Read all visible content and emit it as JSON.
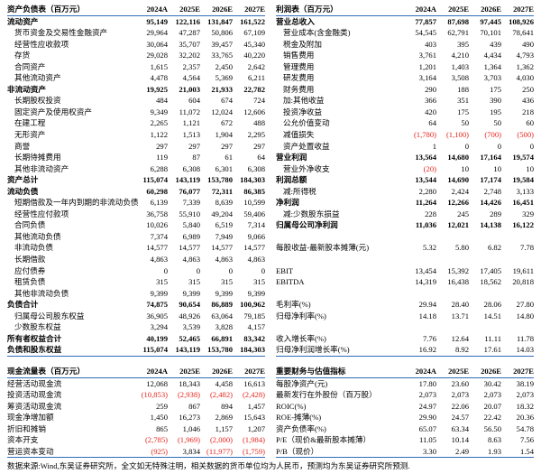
{
  "footer": {
    "text": "数据来源:Wind,东吴证券研究所，全文如无特殊注明，相关数据的货币单位均为人民币，预测均为东吴证券研究所预测."
  },
  "accent_colors": {
    "rule_blue": "#2f6db7",
    "negative_red": "#e4251c"
  },
  "tables": [
    {
      "id": "balance-sheet",
      "title": "资产负债表（百万元）",
      "columns": [
        "2024A",
        "2025E",
        "2026E",
        "2027E"
      ],
      "rows": [
        {
          "label": "流动资产",
          "bold": true,
          "values": [
            "95,149",
            "122,116",
            "131,847",
            "161,522"
          ]
        },
        {
          "label": "货币资金及交易性金融资产",
          "indent": 1,
          "values": [
            "29,964",
            "47,287",
            "50,806",
            "67,109"
          ]
        },
        {
          "label": "经营性应收款项",
          "indent": 1,
          "values": [
            "30,064",
            "35,707",
            "39,457",
            "45,340"
          ]
        },
        {
          "label": "存货",
          "indent": 1,
          "values": [
            "29,028",
            "32,202",
            "33,765",
            "40,220"
          ]
        },
        {
          "label": "合同资产",
          "indent": 1,
          "values": [
            "1,615",
            "2,357",
            "2,450",
            "2,642"
          ]
        },
        {
          "label": "其他流动资产",
          "indent": 1,
          "values": [
            "4,478",
            "4,564",
            "5,369",
            "6,211"
          ]
        },
        {
          "label": "非流动资产",
          "bold": true,
          "values": [
            "19,925",
            "21,003",
            "21,933",
            "22,782"
          ]
        },
        {
          "label": "长期股权投资",
          "indent": 1,
          "values": [
            "484",
            "604",
            "674",
            "724"
          ]
        },
        {
          "label": "固定资产及使用权资产",
          "indent": 1,
          "values": [
            "9,349",
            "11,072",
            "12,024",
            "12,606"
          ]
        },
        {
          "label": "在建工程",
          "indent": 1,
          "values": [
            "2,265",
            "1,121",
            "672",
            "488"
          ]
        },
        {
          "label": "无形资产",
          "indent": 1,
          "values": [
            "1,122",
            "1,513",
            "1,904",
            "2,295"
          ]
        },
        {
          "label": "商誉",
          "indent": 1,
          "values": [
            "297",
            "297",
            "297",
            "297"
          ]
        },
        {
          "label": "长期待摊费用",
          "indent": 1,
          "values": [
            "119",
            "87",
            "61",
            "64"
          ]
        },
        {
          "label": "其他非流动资产",
          "indent": 1,
          "values": [
            "6,288",
            "6,308",
            "6,301",
            "6,308"
          ]
        },
        {
          "label": "资产总计",
          "bold": true,
          "values": [
            "115,074",
            "143,119",
            "153,780",
            "184,303"
          ]
        },
        {
          "label": "流动负债",
          "bold": true,
          "values": [
            "60,298",
            "76,077",
            "72,311",
            "86,385"
          ]
        },
        {
          "label": "短期借款及一年内到期的非流动负债",
          "indent": 1,
          "values": [
            "6,139",
            "7,339",
            "8,639",
            "10,599"
          ]
        },
        {
          "label": "经营性应付款项",
          "indent": 1,
          "values": [
            "36,758",
            "55,910",
            "49,204",
            "59,406"
          ]
        },
        {
          "label": "合同负债",
          "indent": 1,
          "values": [
            "10,026",
            "5,840",
            "6,519",
            "7,314"
          ]
        },
        {
          "label": "其他流动负债",
          "indent": 1,
          "values": [
            "7,374",
            "6,989",
            "7,949",
            "9,066"
          ]
        },
        {
          "label": "非流动负债",
          "indent": 1,
          "values": [
            "14,577",
            "14,577",
            "14,577",
            "14,577"
          ]
        },
        {
          "label": "长期借款",
          "indent": 1,
          "values": [
            "4,863",
            "4,863",
            "4,863",
            "4,863"
          ]
        },
        {
          "label": "应付债券",
          "indent": 1,
          "values": [
            "0",
            "0",
            "0",
            "0"
          ]
        },
        {
          "label": "租赁负债",
          "indent": 1,
          "values": [
            "315",
            "315",
            "315",
            "315"
          ]
        },
        {
          "label": "其他非流动负债",
          "indent": 1,
          "values": [
            "9,399",
            "9,399",
            "9,399",
            "9,399"
          ]
        },
        {
          "label": "负债合计",
          "bold": true,
          "values": [
            "74,875",
            "90,654",
            "86,889",
            "100,962"
          ]
        },
        {
          "label": "归属母公司股东权益",
          "indent": 1,
          "values": [
            "36,905",
            "48,926",
            "63,064",
            "79,185"
          ]
        },
        {
          "label": "少数股东权益",
          "indent": 1,
          "values": [
            "3,294",
            "3,539",
            "3,828",
            "4,157"
          ]
        },
        {
          "label": "所有者权益合计",
          "bold": true,
          "values": [
            "40,199",
            "52,465",
            "66,891",
            "83,342"
          ]
        },
        {
          "label": "负债和股东权益",
          "bold": true,
          "values": [
            "115,074",
            "143,119",
            "153,780",
            "184,303"
          ]
        }
      ]
    },
    {
      "id": "income-statement",
      "title": "利润表（百万元）",
      "columns": [
        "2024A",
        "2025E",
        "2026E",
        "2027E"
      ],
      "rows": [
        {
          "label": "营业总收入",
          "bold": true,
          "values": [
            "77,857",
            "87,698",
            "97,445",
            "108,926"
          ]
        },
        {
          "label": "营业成本(含金融类)",
          "indent": 1,
          "values": [
            "54,545",
            "62,791",
            "70,101",
            "78,641"
          ]
        },
        {
          "label": "税金及附加",
          "indent": 1,
          "values": [
            "403",
            "395",
            "439",
            "490"
          ]
        },
        {
          "label": "销售费用",
          "indent": 1,
          "values": [
            "3,761",
            "4,210",
            "4,434",
            "4,793"
          ]
        },
        {
          "label": "管理费用",
          "indent": 1,
          "values": [
            "1,201",
            "1,403",
            "1,364",
            "1,362"
          ]
        },
        {
          "label": "研发费用",
          "indent": 1,
          "values": [
            "3,164",
            "3,508",
            "3,703",
            "4,030"
          ]
        },
        {
          "label": "财务费用",
          "indent": 1,
          "values": [
            "290",
            "188",
            "175",
            "250"
          ]
        },
        {
          "label": "加:其他收益",
          "indent": 1,
          "values": [
            "366",
            "351",
            "390",
            "436"
          ]
        },
        {
          "label": "投资净收益",
          "indent": 1,
          "values": [
            "420",
            "175",
            "195",
            "218"
          ]
        },
        {
          "label": "公允价值变动",
          "indent": 1,
          "values": [
            "64",
            "50",
            "50",
            "60"
          ]
        },
        {
          "label": "减值损失",
          "indent": 1,
          "values": [
            "(1,780)",
            "(1,100)",
            "(700)",
            "(500)"
          ]
        },
        {
          "label": "资产处置收益",
          "indent": 1,
          "values": [
            "1",
            "0",
            "0",
            "0"
          ]
        },
        {
          "label": "营业利润",
          "bold": true,
          "values": [
            "13,564",
            "14,680",
            "17,164",
            "19,574"
          ]
        },
        {
          "label": "营业外净收支",
          "indent": 1,
          "values": [
            "(20)",
            "10",
            "10",
            "10"
          ]
        },
        {
          "label": "利润总额",
          "bold": true,
          "values": [
            "13,544",
            "14,690",
            "17,174",
            "19,584"
          ]
        },
        {
          "label": "减:所得税",
          "indent": 1,
          "values": [
            "2,280",
            "2,424",
            "2,748",
            "3,133"
          ]
        },
        {
          "label": "净利润",
          "bold": true,
          "values": [
            "11,264",
            "12,266",
            "14,426",
            "16,451"
          ]
        },
        {
          "label": "减:少数股东损益",
          "indent": 1,
          "values": [
            "228",
            "245",
            "289",
            "329"
          ]
        },
        {
          "label": "归属母公司净利润",
          "bold": true,
          "values": [
            "11,036",
            "12,021",
            "14,138",
            "16,122"
          ]
        },
        {
          "label": "",
          "values": [
            "",
            "",
            "",
            ""
          ]
        },
        {
          "label": "每股收益-最新股本摊薄(元)",
          "values": [
            "5.32",
            "5.80",
            "6.82",
            "7.78"
          ]
        },
        {
          "label": "",
          "values": [
            "",
            "",
            "",
            ""
          ]
        },
        {
          "label": "EBIT",
          "values": [
            "13,454",
            "15,392",
            "17,405",
            "19,611"
          ]
        },
        {
          "label": "EBITDA",
          "values": [
            "14,319",
            "16,438",
            "18,562",
            "20,818"
          ]
        },
        {
          "label": "",
          "values": [
            "",
            "",
            "",
            ""
          ]
        },
        {
          "label": "毛利率(%)",
          "values": [
            "29.94",
            "28.40",
            "28.06",
            "27.80"
          ]
        },
        {
          "label": "归母净利率(%)",
          "values": [
            "14.18",
            "13.71",
            "14.51",
            "14.80"
          ]
        },
        {
          "label": "",
          "values": [
            "",
            "",
            "",
            ""
          ]
        },
        {
          "label": "收入增长率(%)",
          "values": [
            "7.76",
            "12.64",
            "11.11",
            "11.78"
          ]
        },
        {
          "label": "归母净利润增长率(%)",
          "values": [
            "16.92",
            "8.92",
            "17.61",
            "14.03"
          ]
        }
      ]
    },
    {
      "id": "cash-flow",
      "title": "现金流量表（百万元）",
      "columns": [
        "2024A",
        "2025E",
        "2026E",
        "2027E"
      ],
      "rows": [
        {
          "label": "经营活动现金流",
          "values": [
            "12,068",
            "18,343",
            "4,458",
            "16,613"
          ]
        },
        {
          "label": "投资活动现金流",
          "values": [
            "(10,853)",
            "(2,938)",
            "(2,482)",
            "(2,428)"
          ]
        },
        {
          "label": "筹资活动现金流",
          "values": [
            "259",
            "867",
            "894",
            "1,457"
          ]
        },
        {
          "label": "现金净增加额",
          "values": [
            "1,450",
            "16,273",
            "2,869",
            "15,643"
          ]
        },
        {
          "label": "折旧和摊销",
          "values": [
            "865",
            "1,046",
            "1,157",
            "1,207"
          ]
        },
        {
          "label": "资本开支",
          "values": [
            "(2,785)",
            "(1,969)",
            "(2,000)",
            "(1,984)"
          ]
        },
        {
          "label": "营运资本变动",
          "values": [
            "(925)",
            "3,834",
            "(11,977)",
            "(1,759)"
          ]
        }
      ]
    },
    {
      "id": "key-metrics",
      "title": "重要财务与估值指标",
      "columns": [
        "2024A",
        "2025E",
        "2026E",
        "2027E"
      ],
      "rows": [
        {
          "label": "每股净资产(元)",
          "values": [
            "17.80",
            "23.60",
            "30.42",
            "38.19"
          ]
        },
        {
          "label": "最新发行在外股份（百万股）",
          "values": [
            "2,073",
            "2,073",
            "2,073",
            "2,073"
          ]
        },
        {
          "label": "ROIC(%)",
          "values": [
            "24.97",
            "22.06",
            "20.07",
            "18.32"
          ]
        },
        {
          "label": "ROE-摊薄(%)",
          "values": [
            "29.90",
            "24.57",
            "22.42",
            "20.36"
          ]
        },
        {
          "label": "资产负债率(%)",
          "values": [
            "65.07",
            "63.34",
            "56.50",
            "54.78"
          ]
        },
        {
          "label": "P/E（现价&最新股本摊薄）",
          "values": [
            "11.05",
            "10.14",
            "8.63",
            "7.56"
          ]
        },
        {
          "label": "P/B（现价）",
          "values": [
            "3.30",
            "2.49",
            "1.93",
            "1.54"
          ]
        }
      ]
    }
  ]
}
